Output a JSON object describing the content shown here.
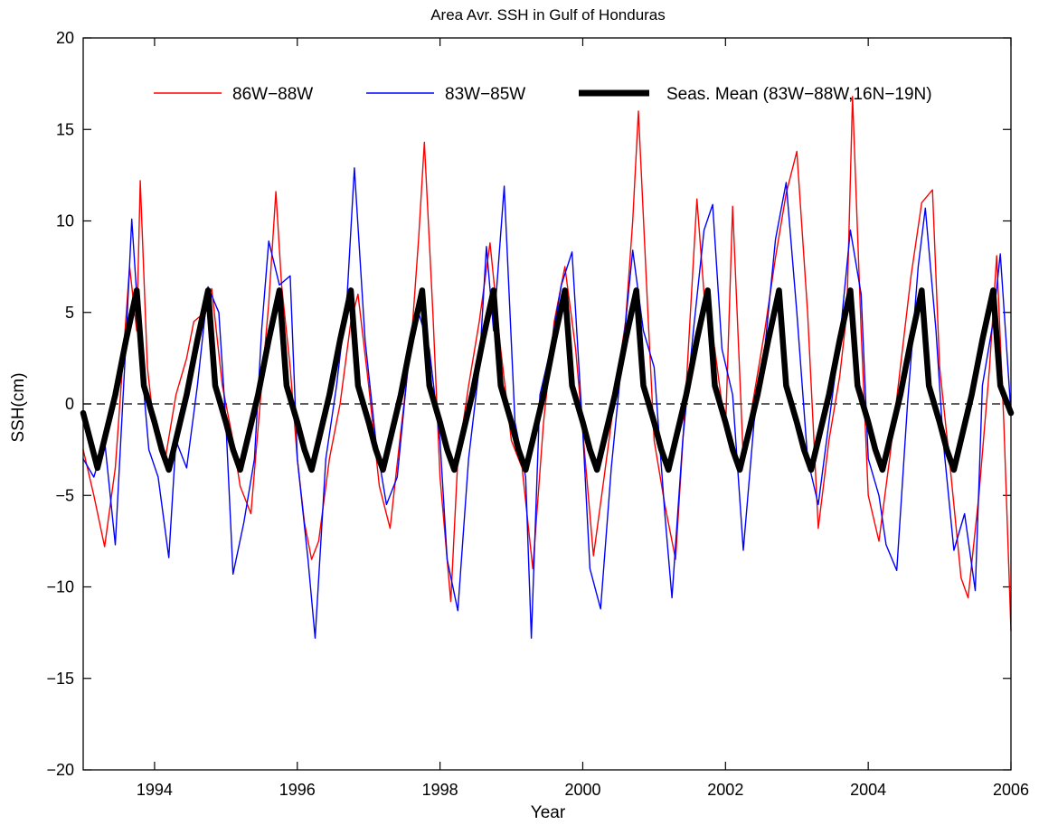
{
  "chart_data": {
    "type": "line",
    "title": "Area Avr. SSH in Gulf of Honduras",
    "xlabel": "Year",
    "ylabel": "SSH(cm)",
    "xlim": [
      1993,
      2006
    ],
    "ylim": [
      -20,
      20
    ],
    "xticks": [
      1994,
      1996,
      1998,
      2000,
      2002,
      2004,
      2006
    ],
    "yticks": [
      -20,
      -15,
      -10,
      -5,
      0,
      5,
      10,
      15,
      20
    ],
    "legend_position": "top",
    "reference_line": {
      "y": 0,
      "style": "dashed",
      "color": "#000000"
    },
    "series": [
      {
        "name": "86W−88W",
        "color": "#ff0000",
        "x": [
          1993.0,
          1993.15,
          1993.3,
          1993.45,
          1993.55,
          1993.65,
          1993.75,
          1993.8,
          1993.9,
          1994.0,
          1994.15,
          1994.3,
          1994.45,
          1994.55,
          1994.7,
          1994.8,
          1994.95,
          1995.1,
          1995.2,
          1995.35,
          1995.5,
          1995.6,
          1995.7,
          1995.78,
          1995.9,
          1996.0,
          1996.1,
          1996.2,
          1996.3,
          1996.45,
          1996.6,
          1996.75,
          1996.85,
          1997.0,
          1997.15,
          1997.3,
          1997.45,
          1997.6,
          1997.7,
          1997.78,
          1997.9,
          1998.0,
          1998.15,
          1998.25,
          1998.4,
          1998.55,
          1998.7,
          1998.85,
          1999.0,
          1999.15,
          1999.3,
          1999.45,
          1999.6,
          1999.75,
          1999.9,
          2000.0,
          2000.15,
          2000.3,
          2000.45,
          2000.6,
          2000.7,
          2000.78,
          2000.9,
          2001.0,
          2001.15,
          2001.3,
          2001.45,
          2001.6,
          2001.7,
          2001.85,
          2002.0,
          2002.1,
          2002.25,
          2002.4,
          2002.55,
          2002.7,
          2002.85,
          2003.0,
          2003.15,
          2003.3,
          2003.45,
          2003.6,
          2003.7,
          2003.78,
          2003.9,
          2004.0,
          2004.15,
          2004.3,
          2004.45,
          2004.6,
          2004.75,
          2004.9,
          2005.0,
          2005.15,
          2005.3,
          2005.4,
          2005.55,
          2005.7,
          2005.8,
          2005.9,
          2006.0
        ],
        "y": [
          -2.5,
          -5.0,
          -7.8,
          -3.5,
          2.0,
          7.5,
          4.0,
          12.2,
          2.0,
          -1.5,
          -3.0,
          0.5,
          2.5,
          4.5,
          5.0,
          6.3,
          1.0,
          -2.0,
          -4.5,
          -6.0,
          1.0,
          5.5,
          11.6,
          6.5,
          2.0,
          -3.0,
          -6.5,
          -8.5,
          -7.5,
          -3.0,
          0.0,
          4.5,
          6.0,
          1.0,
          -4.5,
          -6.8,
          -1.5,
          3.5,
          9.0,
          14.3,
          5.0,
          -4.0,
          -10.8,
          -3.0,
          1.0,
          4.5,
          8.8,
          3.0,
          -2.0,
          -3.5,
          -9.0,
          -1.0,
          4.5,
          7.5,
          3.0,
          -1.5,
          -8.3,
          -4.0,
          0.5,
          4.5,
          10.0,
          16.0,
          6.0,
          -2.0,
          -5.5,
          -8.5,
          1.0,
          11.2,
          6.0,
          3.0,
          -1.5,
          10.8,
          -3.0,
          0.5,
          4.0,
          8.0,
          11.5,
          13.8,
          5.0,
          -6.8,
          -2.0,
          1.5,
          5.0,
          16.8,
          4.0,
          -5.0,
          -7.5,
          -3.0,
          2.0,
          7.0,
          11.0,
          11.7,
          2.0,
          -3.5,
          -9.5,
          -10.6,
          -5.0,
          2.0,
          8.1,
          -1.0,
          -12.4
        ]
      },
      {
        "name": "83W−85W",
        "color": "#0000ff",
        "x": [
          1993.0,
          1993.15,
          1993.3,
          1993.45,
          1993.6,
          1993.68,
          1993.8,
          1993.92,
          1994.05,
          1994.2,
          1994.3,
          1994.45,
          1994.6,
          1994.75,
          1994.9,
          1995.0,
          1995.1,
          1995.25,
          1995.4,
          1995.5,
          1995.6,
          1995.75,
          1995.9,
          1996.0,
          1996.15,
          1996.25,
          1996.4,
          1996.55,
          1996.7,
          1996.8,
          1996.95,
          1997.1,
          1997.25,
          1997.4,
          1997.55,
          1997.7,
          1997.85,
          1998.0,
          1998.1,
          1998.25,
          1998.4,
          1998.55,
          1998.65,
          1998.75,
          1998.9,
          1999.05,
          1999.2,
          1999.28,
          1999.4,
          1999.55,
          1999.7,
          1999.85,
          2000.0,
          2000.1,
          2000.25,
          2000.4,
          2000.55,
          2000.7,
          2000.85,
          2001.0,
          2001.15,
          2001.25,
          2001.4,
          2001.55,
          2001.7,
          2001.82,
          2001.95,
          2002.1,
          2002.25,
          2002.4,
          2002.55,
          2002.7,
          2002.85,
          2003.0,
          2003.15,
          2003.3,
          2003.45,
          2003.6,
          2003.75,
          2003.9,
          2004.0,
          2004.15,
          2004.25,
          2004.4,
          2004.55,
          2004.7,
          2004.8,
          2004.95,
          2005.05,
          2005.2,
          2005.35,
          2005.5,
          2005.6,
          2005.75,
          2005.85,
          2006.0
        ],
        "y": [
          -3.0,
          -4.0,
          -2.0,
          -7.7,
          3.5,
          10.1,
          3.0,
          -2.5,
          -4.0,
          -8.4,
          -2.0,
          -3.5,
          1.0,
          6.4,
          5.0,
          -1.0,
          -9.3,
          -6.5,
          -3.0,
          4.0,
          8.9,
          6.5,
          7.0,
          -3.0,
          -8.5,
          -12.8,
          -3.0,
          1.0,
          6.0,
          12.9,
          3.5,
          -2.0,
          -5.5,
          -4.0,
          2.0,
          5.0,
          3.0,
          -2.0,
          -8.5,
          -11.3,
          -3.0,
          2.0,
          8.6,
          4.0,
          11.9,
          -1.0,
          -4.0,
          -12.8,
          0.5,
          3.0,
          6.5,
          8.3,
          -1.5,
          -9.0,
          -11.2,
          -3.5,
          2.5,
          8.4,
          4.0,
          2.0,
          -6.0,
          -10.6,
          -2.0,
          4.0,
          9.5,
          10.9,
          3.0,
          0.5,
          -8.0,
          -1.0,
          3.0,
          9.0,
          12.1,
          5.0,
          -3.0,
          -5.5,
          -1.0,
          3.5,
          9.5,
          6.0,
          -3.0,
          -5.0,
          -7.7,
          -9.1,
          0.0,
          7.5,
          10.7,
          4.0,
          -2.0,
          -8.0,
          -6.0,
          -10.2,
          1.0,
          4.5,
          8.2,
          -0.5
        ]
      },
      {
        "name": "Seas. Mean (83W−88W,16N−19N)",
        "color": "#000000",
        "x": [
          1993.0,
          1993.2,
          1993.45,
          1993.6,
          1993.75,
          1993.85,
          1994.0,
          1994.1,
          1994.2,
          1994.45,
          1994.6,
          1994.75,
          1994.85,
          1995.0,
          1995.1,
          1995.2,
          1995.45,
          1995.6,
          1995.75,
          1995.85,
          1996.0,
          1996.1,
          1996.2,
          1996.45,
          1996.6,
          1996.75,
          1996.85,
          1997.0,
          1997.1,
          1997.2,
          1997.45,
          1997.6,
          1997.75,
          1997.85,
          1998.0,
          1998.1,
          1998.2,
          1998.45,
          1998.6,
          1998.75,
          1998.85,
          1999.0,
          1999.1,
          1999.2,
          1999.45,
          1999.6,
          1999.75,
          1999.85,
          2000.0,
          2000.1,
          2000.2,
          2000.45,
          2000.6,
          2000.75,
          2000.85,
          2001.0,
          2001.1,
          2001.2,
          2001.45,
          2001.6,
          2001.75,
          2001.85,
          2002.0,
          2002.1,
          2002.2,
          2002.45,
          2002.6,
          2002.75,
          2002.85,
          2003.0,
          2003.1,
          2003.2,
          2003.45,
          2003.6,
          2003.75,
          2003.85,
          2004.0,
          2004.1,
          2004.2,
          2004.45,
          2004.6,
          2004.75,
          2004.85,
          2005.0,
          2005.1,
          2005.2,
          2005.45,
          2005.6,
          2005.75,
          2005.85,
          2006.0
        ],
        "y": [
          -0.5,
          -3.5,
          0.5,
          3.5,
          6.2,
          1.0,
          -1.0,
          -2.5,
          -3.6,
          0.5,
          3.5,
          6.2,
          1.0,
          -1.0,
          -2.5,
          -3.6,
          0.5,
          3.5,
          6.2,
          1.0,
          -1.0,
          -2.5,
          -3.6,
          0.5,
          3.5,
          6.2,
          1.0,
          -1.0,
          -2.5,
          -3.6,
          0.5,
          3.5,
          6.2,
          1.0,
          -1.0,
          -2.5,
          -3.6,
          0.5,
          3.5,
          6.2,
          1.0,
          -1.0,
          -2.5,
          -3.6,
          0.5,
          3.5,
          6.2,
          1.0,
          -1.0,
          -2.5,
          -3.6,
          0.5,
          3.5,
          6.2,
          1.0,
          -1.0,
          -2.5,
          -3.6,
          0.5,
          3.5,
          6.2,
          1.0,
          -1.0,
          -2.5,
          -3.6,
          0.5,
          3.5,
          6.2,
          1.0,
          -1.0,
          -2.5,
          -3.6,
          0.5,
          3.5,
          6.2,
          1.0,
          -1.0,
          -2.5,
          -3.6,
          0.5,
          3.5,
          6.2,
          1.0,
          -1.0,
          -2.5,
          -3.6,
          0.5,
          3.5,
          6.2,
          1.0,
          -0.5
        ]
      }
    ]
  }
}
